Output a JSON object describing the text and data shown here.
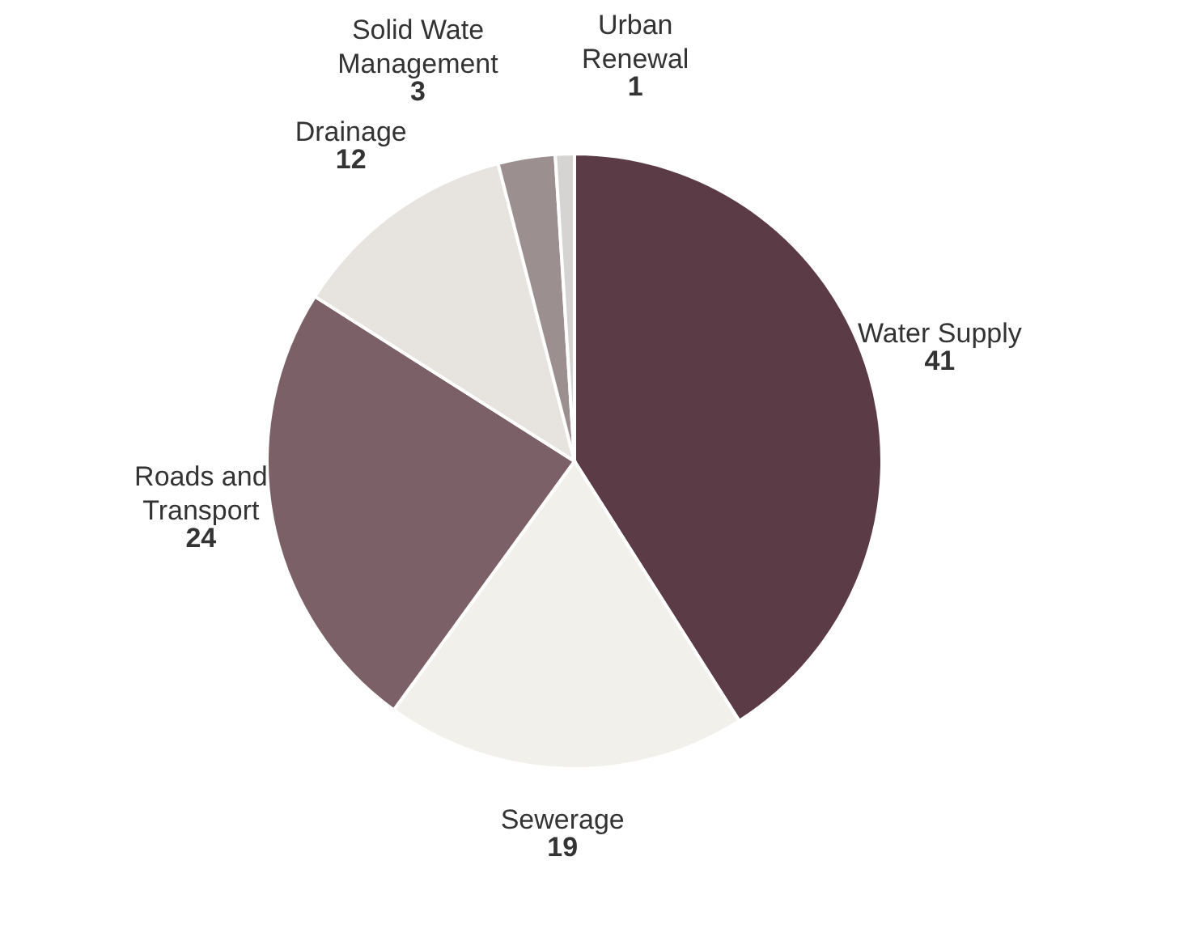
{
  "chart_data": {
    "type": "pie",
    "categories": [
      "Water Supply",
      "Sewerage",
      "Roads and Transport",
      "Drainage",
      "Solid Wate Management",
      "Urban Renewal"
    ],
    "values": [
      41,
      19,
      24,
      12,
      3,
      1
    ],
    "colors": [
      "#5b3b45",
      "#f1f0ea",
      "#7b6068",
      "#e7e4e0",
      "#9b8f90",
      "#d6d3d3"
    ],
    "data_labels": true,
    "legend": false
  }
}
